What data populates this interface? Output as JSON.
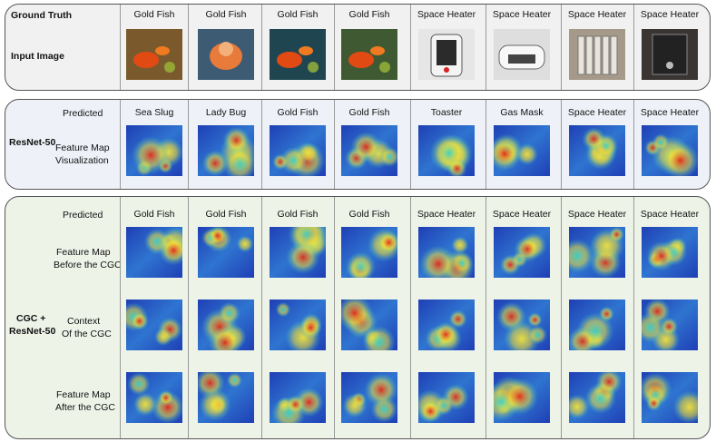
{
  "ground_truth": {
    "label": "Ground Truth",
    "input_label": "Input Image",
    "classes": [
      "Gold Fish",
      "Gold Fish",
      "Gold Fish",
      "Gold Fish",
      "Space Heater",
      "Space Heater",
      "Space Heater",
      "Space Heater"
    ]
  },
  "resnet": {
    "model_label": "ResNet-50",
    "predicted_label": "Predicted",
    "feature_label_1": "Feature Map",
    "feature_label_2": "Visualization",
    "predictions": [
      "Sea Slug",
      "Lady Bug",
      "Gold Fish",
      "Gold Fish",
      "Toaster",
      "Gas Mask",
      "Space Heater",
      "Space Heater"
    ]
  },
  "cgc": {
    "model_label_1": "CGC +",
    "model_label_2": "ResNet-50",
    "predicted_label": "Predicted",
    "before_label_1": "Feature Map",
    "before_label_2": "Before the CGC",
    "context_label_1": "Context",
    "context_label_2": "Of the CGC",
    "after_label_1": "Feature Map",
    "after_label_2": "After the CGC",
    "predictions": [
      "Gold Fish",
      "Gold Fish",
      "Gold Fish",
      "Gold Fish",
      "Space Heater",
      "Space Heater",
      "Space Heater",
      "Space Heater"
    ]
  },
  "colors": {
    "heat_low": "#1f3fb5",
    "heat_mid": "#3ad0c8",
    "heat_warm": "#f2e23a",
    "heat_high": "#e3261b"
  }
}
